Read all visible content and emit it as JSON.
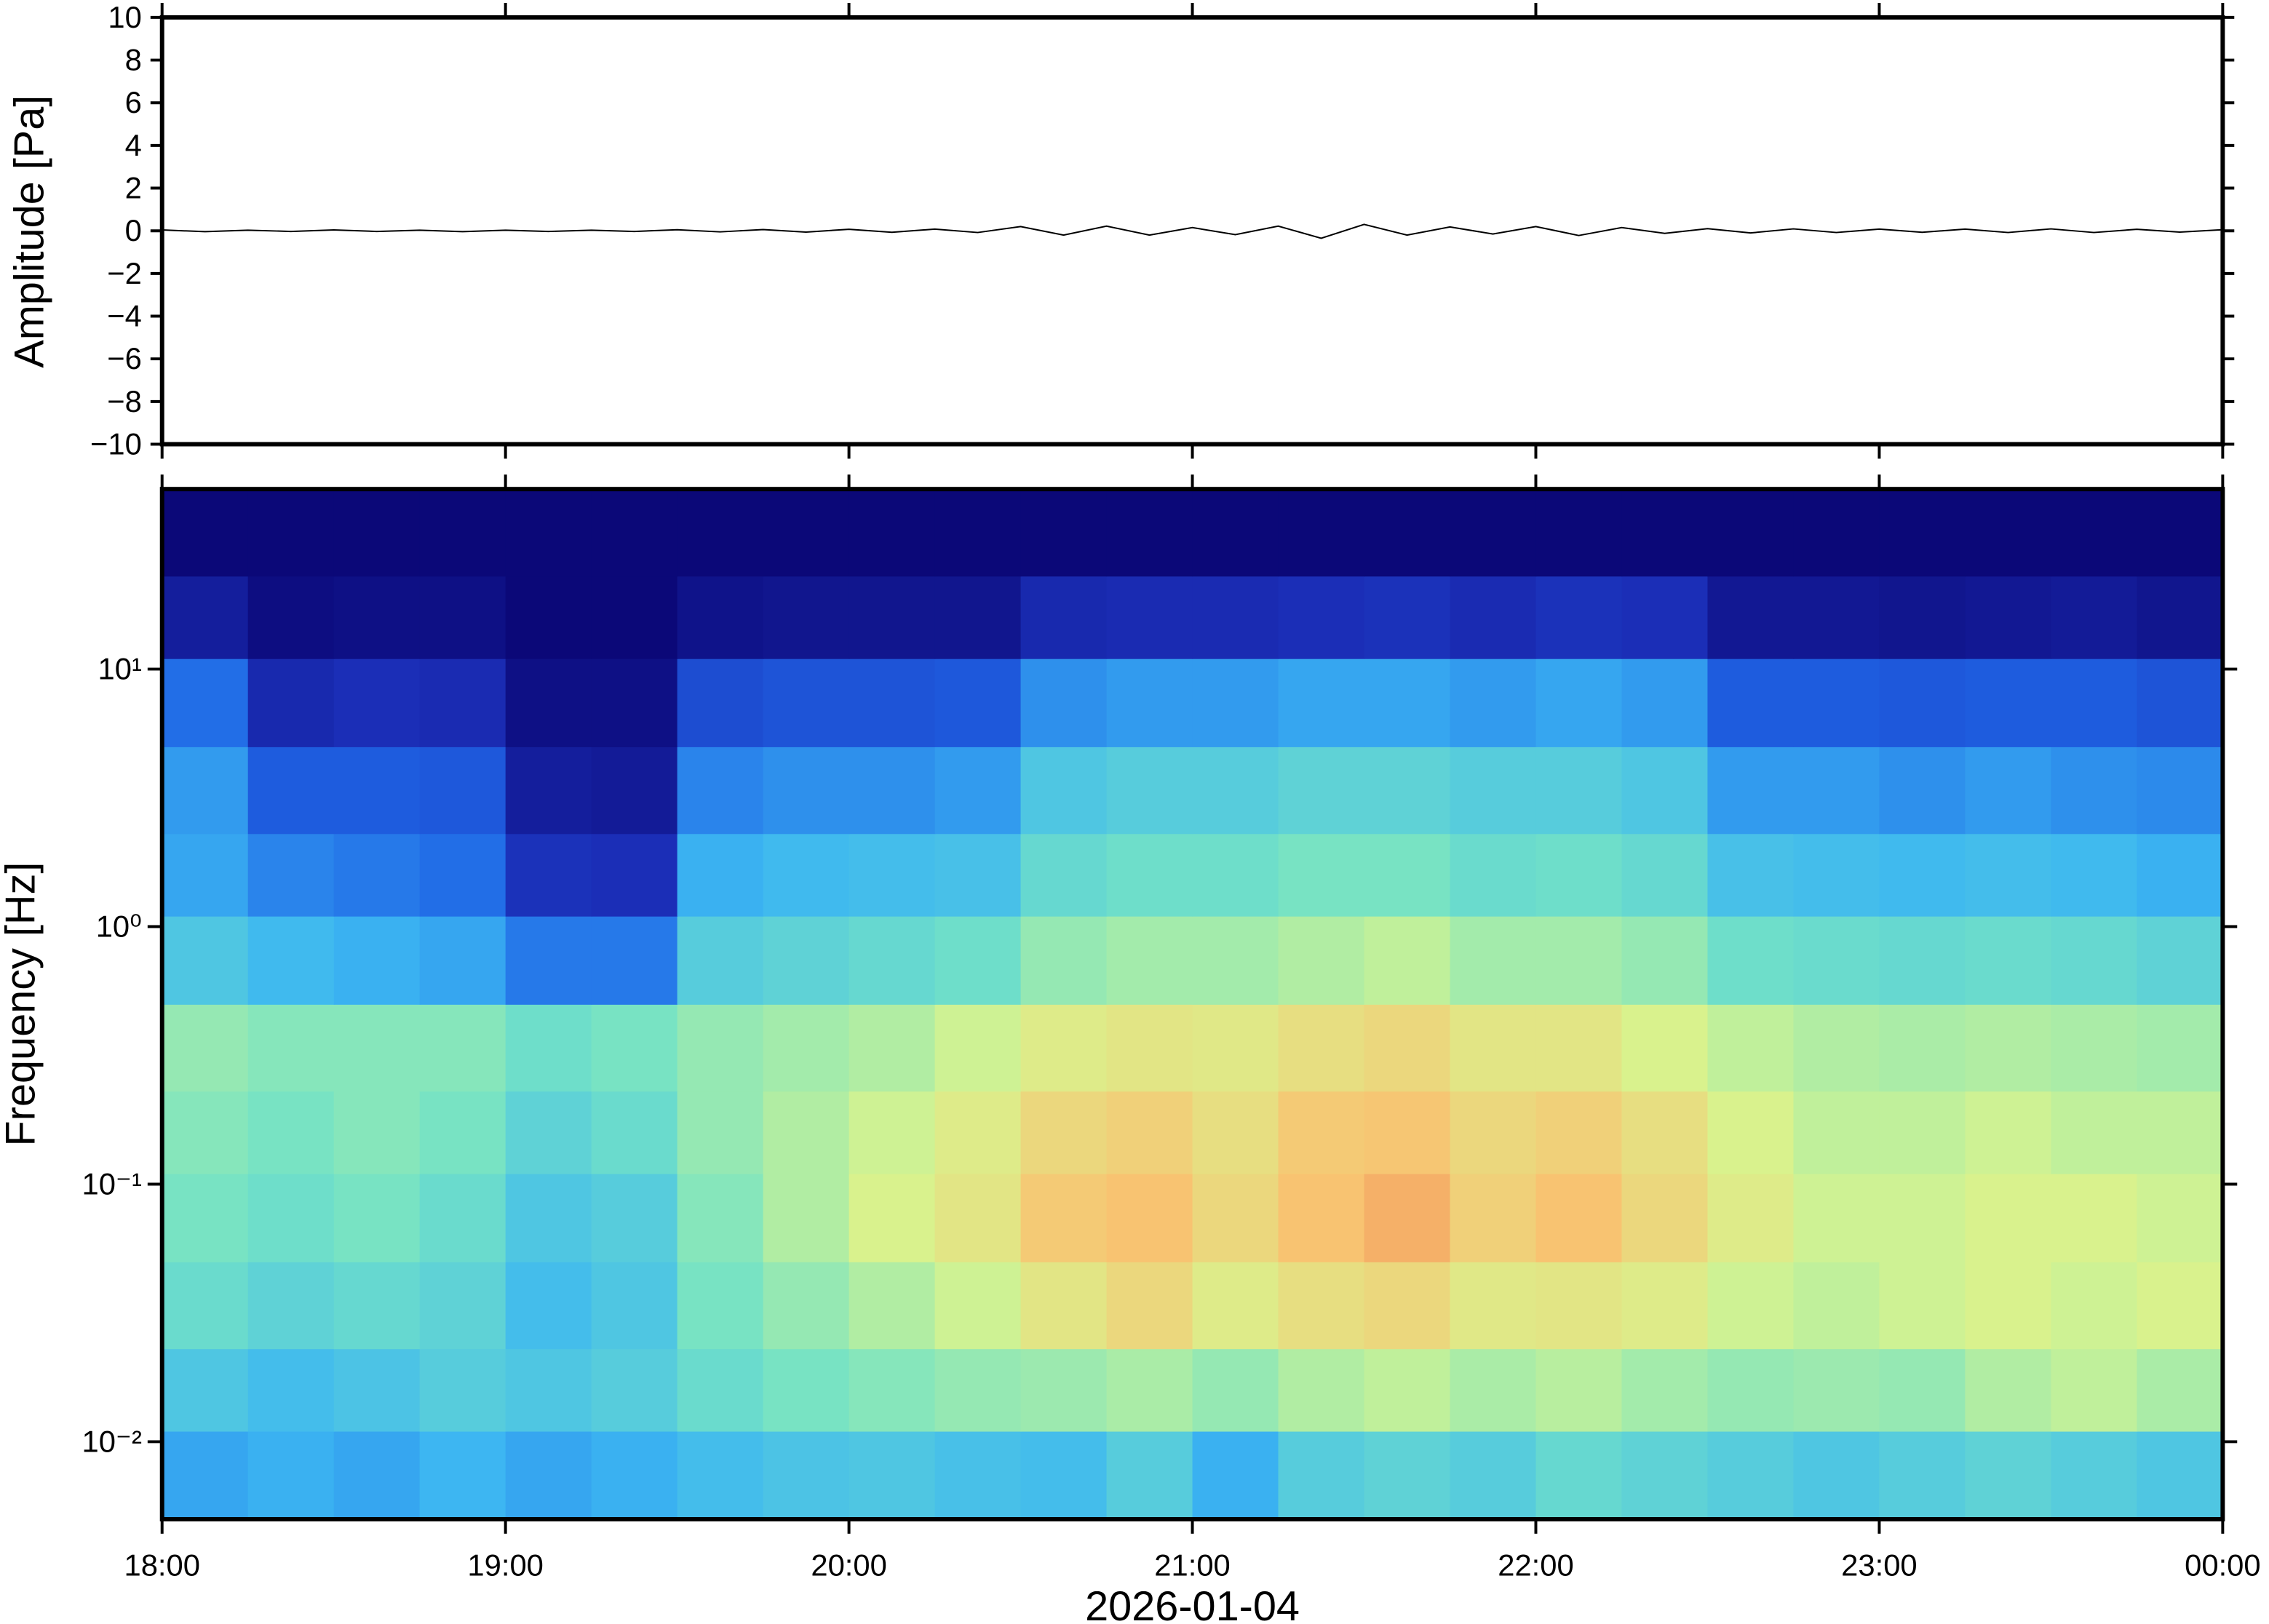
{
  "chart_data": [
    {
      "type": "line",
      "ylabel": "Amplitude [Pa]",
      "color": "#000000",
      "xlim": [
        18,
        24
      ],
      "ylim": [
        -10,
        10
      ],
      "yticks": [
        {
          "value": -10,
          "label": "−10"
        },
        {
          "value": -8,
          "label": "−8"
        },
        {
          "value": -6,
          "label": "−6"
        },
        {
          "value": -4,
          "label": "−4"
        },
        {
          "value": -2,
          "label": "−2"
        },
        0,
        2,
        4,
        6,
        8,
        10
      ],
      "x": [
        18,
        18.125,
        18.25,
        18.375,
        18.5,
        18.625,
        18.75,
        18.875,
        19,
        19.125,
        19.25,
        19.375,
        19.5,
        19.625,
        19.75,
        19.875,
        20,
        20.125,
        20.25,
        20.375,
        20.5,
        20.625,
        20.75,
        20.875,
        21,
        21.125,
        21.25,
        21.375,
        21.5,
        21.625,
        21.75,
        21.875,
        22,
        22.125,
        22.25,
        22.375,
        22.5,
        22.625,
        22.75,
        22.875,
        23,
        23.125,
        23.25,
        23.375,
        23.5,
        23.625,
        23.75,
        23.875,
        24
      ],
      "values": [
        0.04,
        -0.04,
        0.03,
        -0.03,
        0.04,
        -0.03,
        0.03,
        -0.04,
        0.03,
        -0.03,
        0.03,
        -0.03,
        0.05,
        -0.05,
        0.06,
        -0.06,
        0.07,
        -0.07,
        0.08,
        -0.08,
        0.2,
        -0.2,
        0.22,
        -0.2,
        0.15,
        -0.18,
        0.22,
        -0.35,
        0.3,
        -0.2,
        0.18,
        -0.15,
        0.2,
        -0.22,
        0.15,
        -0.12,
        0.1,
        -0.1,
        0.09,
        -0.08,
        0.08,
        -0.07,
        0.08,
        -0.08,
        0.09,
        -0.08,
        0.07,
        -0.06,
        0.05
      ]
    },
    {
      "type": "heatmap",
      "ylabel": "Frequency [Hz]",
      "xlabel": "2026-01-04",
      "log_y": true,
      "xlim": [
        18,
        24
      ],
      "xticks": [
        {
          "value": 18,
          "label": "18:00"
        },
        {
          "value": 19,
          "label": "19:00"
        },
        {
          "value": 20,
          "label": "20:00"
        },
        {
          "value": 21,
          "label": "21:00"
        },
        {
          "value": 22,
          "label": "22:00"
        },
        {
          "value": 23,
          "label": "23:00"
        },
        {
          "value": 24,
          "label": "00:00"
        }
      ],
      "ylim": [
        0.005,
        50
      ],
      "yticks": [
        {
          "value": 0.01,
          "label": "10⁻²"
        },
        {
          "value": 0.1,
          "label": "10⁻¹"
        },
        {
          "value": 1,
          "label": "10⁰"
        },
        {
          "value": 10,
          "label": "10¹"
        }
      ],
      "colormap": [
        "#0b0878",
        "#1b2fb8",
        "#1f66e6",
        "#3cb6f2",
        "#72e2c6",
        "#d8f48e",
        "#f8c472",
        "#ef8050"
      ],
      "zlim": [
        0,
        1
      ],
      "time_bins": [
        18,
        18.25,
        18.5,
        18.75,
        19,
        19.25,
        19.5,
        19.75,
        20,
        20.25,
        20.5,
        20.75,
        21,
        21.25,
        21.5,
        21.75,
        22,
        22.25,
        22.5,
        22.75,
        23,
        23.25,
        23.5,
        23.75,
        24
      ],
      "frequency_bins": [
        0.005,
        0.011,
        0.023,
        0.05,
        0.11,
        0.23,
        0.5,
        1.1,
        2.3,
        5,
        11,
        23,
        50
      ],
      "z": [
        [
          0.4,
          0.42,
          0.4,
          0.43,
          0.4,
          0.42,
          0.45,
          0.47,
          0.48,
          0.46,
          0.45,
          0.5,
          0.42,
          0.5,
          0.52,
          0.5,
          0.54,
          0.52,
          0.5,
          0.48,
          0.5,
          0.52,
          0.5,
          0.48
        ],
        [
          0.48,
          0.45,
          0.47,
          0.5,
          0.48,
          0.5,
          0.55,
          0.58,
          0.6,
          0.62,
          0.63,
          0.65,
          0.62,
          0.66,
          0.68,
          0.65,
          0.67,
          0.64,
          0.62,
          0.63,
          0.62,
          0.66,
          0.68,
          0.65
        ],
        [
          0.55,
          0.52,
          0.54,
          0.52,
          0.45,
          0.48,
          0.58,
          0.62,
          0.66,
          0.7,
          0.76,
          0.8,
          0.74,
          0.78,
          0.8,
          0.75,
          0.76,
          0.74,
          0.7,
          0.68,
          0.7,
          0.72,
          0.7,
          0.72
        ],
        [
          0.58,
          0.56,
          0.58,
          0.55,
          0.48,
          0.5,
          0.6,
          0.66,
          0.72,
          0.76,
          0.84,
          0.86,
          0.8,
          0.86,
          0.9,
          0.82,
          0.86,
          0.8,
          0.74,
          0.7,
          0.7,
          0.72,
          0.72,
          0.7
        ],
        [
          0.6,
          0.58,
          0.6,
          0.58,
          0.52,
          0.55,
          0.62,
          0.66,
          0.7,
          0.74,
          0.8,
          0.82,
          0.78,
          0.84,
          0.85,
          0.8,
          0.82,
          0.78,
          0.72,
          0.68,
          0.68,
          0.7,
          0.68,
          0.68
        ],
        [
          0.62,
          0.6,
          0.6,
          0.6,
          0.56,
          0.58,
          0.62,
          0.64,
          0.66,
          0.7,
          0.74,
          0.76,
          0.75,
          0.78,
          0.8,
          0.76,
          0.76,
          0.72,
          0.68,
          0.66,
          0.65,
          0.66,
          0.65,
          0.64
        ],
        [
          0.48,
          0.44,
          0.42,
          0.4,
          0.32,
          0.32,
          0.5,
          0.52,
          0.54,
          0.56,
          0.62,
          0.64,
          0.64,
          0.66,
          0.68,
          0.64,
          0.64,
          0.62,
          0.56,
          0.55,
          0.54,
          0.55,
          0.54,
          0.52
        ],
        [
          0.4,
          0.34,
          0.32,
          0.3,
          0.15,
          0.14,
          0.42,
          0.44,
          0.45,
          0.46,
          0.54,
          0.56,
          0.56,
          0.58,
          0.58,
          0.55,
          0.56,
          0.54,
          0.46,
          0.45,
          0.44,
          0.45,
          0.44,
          0.42
        ],
        [
          0.38,
          0.26,
          0.26,
          0.25,
          0.08,
          0.07,
          0.34,
          0.36,
          0.36,
          0.38,
          0.48,
          0.5,
          0.5,
          0.52,
          0.52,
          0.5,
          0.5,
          0.48,
          0.38,
          0.38,
          0.36,
          0.38,
          0.36,
          0.35
        ],
        [
          0.3,
          0.12,
          0.14,
          0.13,
          0.03,
          0.03,
          0.22,
          0.24,
          0.24,
          0.25,
          0.36,
          0.38,
          0.38,
          0.4,
          0.4,
          0.38,
          0.4,
          0.38,
          0.26,
          0.26,
          0.25,
          0.26,
          0.26,
          0.24
        ],
        [
          0.08,
          0.02,
          0.03,
          0.03,
          0,
          0,
          0.04,
          0.05,
          0.05,
          0.05,
          0.12,
          0.13,
          0.13,
          0.14,
          0.15,
          0.13,
          0.15,
          0.14,
          0.06,
          0.06,
          0.05,
          0.06,
          0.07,
          0.05
        ],
        [
          0,
          0,
          0,
          0,
          0,
          0,
          0,
          0,
          0,
          0,
          0,
          0,
          0,
          0,
          0,
          0,
          0,
          0,
          0,
          0,
          0,
          0,
          0,
          0
        ]
      ]
    }
  ]
}
